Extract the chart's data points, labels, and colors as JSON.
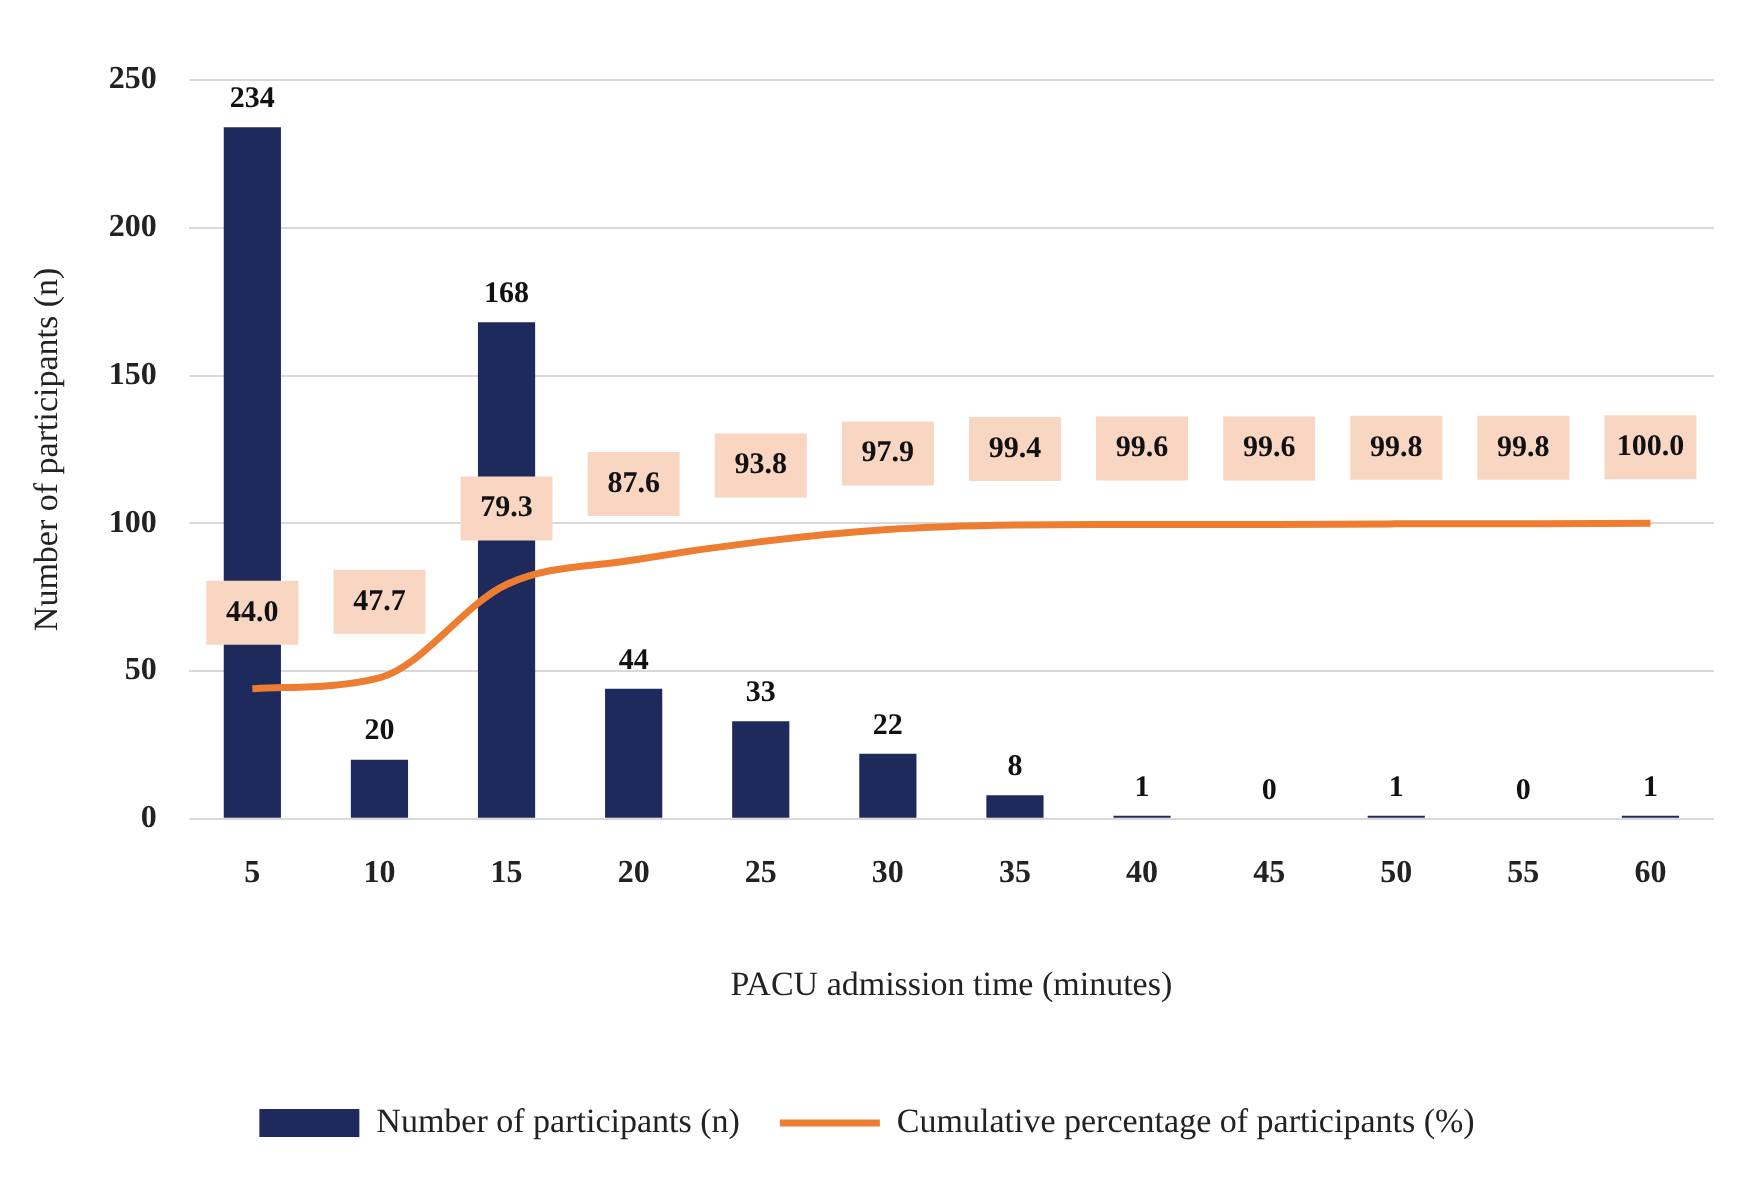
{
  "chart_data": {
    "type": "bar",
    "xlabel": "PACU admission time (minutes)",
    "ylabel": "Number of participants (n)",
    "categories": [
      "5",
      "10",
      "15",
      "20",
      "25",
      "30",
      "35",
      "40",
      "45",
      "50",
      "55",
      "60"
    ],
    "series": [
      {
        "name": "Number of participants (n)",
        "color": "#1f2a5c",
        "values": [
          234,
          20,
          168,
          44,
          33,
          22,
          8,
          1,
          0,
          1,
          0,
          1
        ],
        "value_labels": [
          "234",
          "20",
          "168",
          "44",
          "33",
          "22",
          "8",
          "1",
          "0",
          "1",
          "0",
          "1"
        ]
      },
      {
        "name": "Cumulative percentage of participants (%)",
        "type": "line",
        "color": "#ed7d31",
        "values": [
          44.0,
          47.7,
          79.3,
          87.6,
          93.8,
          97.9,
          99.4,
          99.6,
          99.6,
          99.8,
          99.8,
          100.0
        ],
        "value_labels": [
          "44.0",
          "47.7",
          "79.3",
          "87.6",
          "93.8",
          "97.9",
          "99.4",
          "99.6",
          "99.6",
          "99.8",
          "99.8",
          "100.0"
        ]
      }
    ],
    "ylim": [
      0,
      250
    ],
    "yticks": [
      0,
      50,
      100,
      150,
      200,
      250
    ],
    "grid": "y",
    "legend": "bottom",
    "marker": "none",
    "line_style": "solid"
  }
}
